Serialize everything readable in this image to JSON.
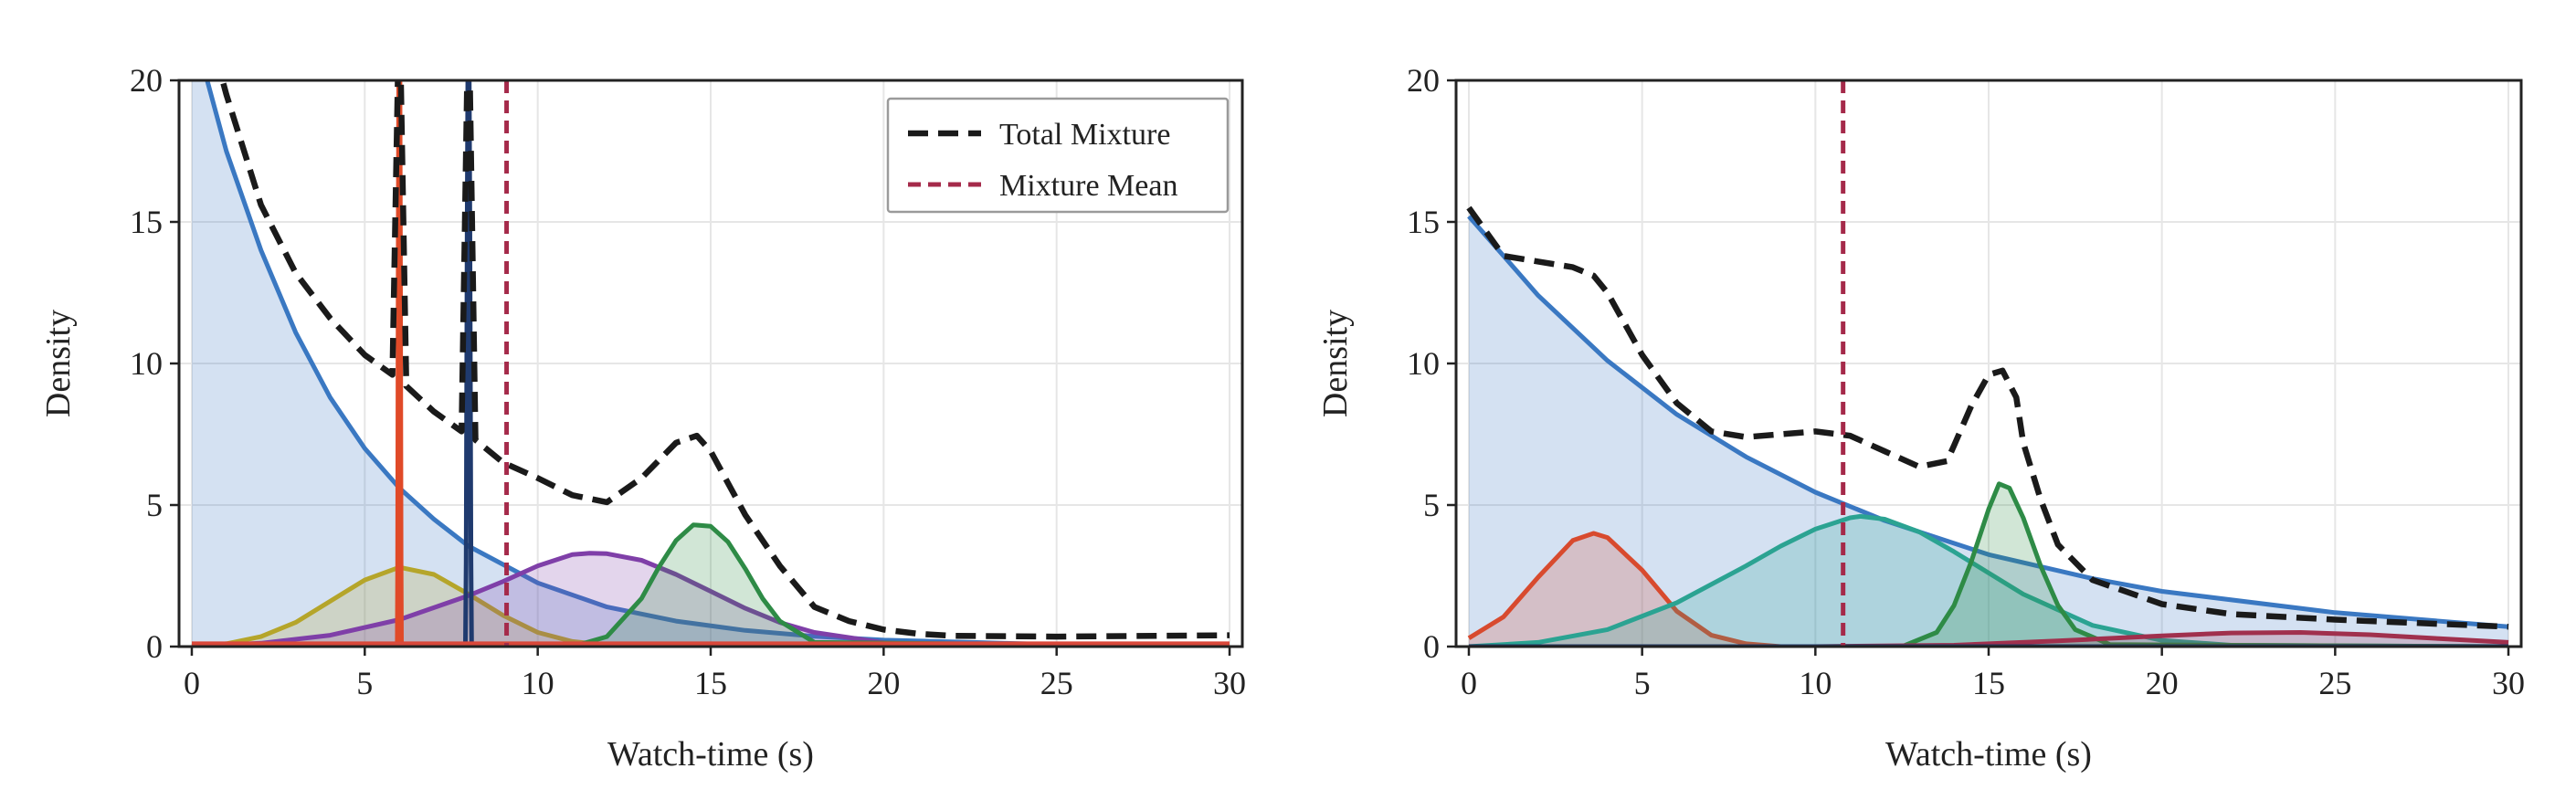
{
  "chart_data": [
    {
      "type": "line",
      "xlabel": "Watch-time (s)",
      "ylabel": "Density",
      "xlim": [
        0,
        30
      ],
      "ylim": [
        0,
        20
      ],
      "xticks": [
        0,
        5,
        10,
        15,
        20,
        25,
        30
      ],
      "yticks": [
        0,
        5,
        10,
        15,
        20
      ],
      "grid": true,
      "legend": {
        "placement": "top-right",
        "entries": [
          "Total Mixture",
          "Mixture Mean"
        ]
      },
      "colors": {
        "total": "#1a1a1a",
        "mean": "#a52a4a"
      },
      "series": [
        {
          "color": "#3a78c2",
          "fill": true,
          "x": [
            0,
            1,
            2,
            3,
            4,
            5,
            6,
            7,
            8,
            10,
            12,
            14,
            16,
            18,
            20,
            25,
            30
          ],
          "y": [
            22.0,
            17.5,
            14.0,
            11.1,
            8.8,
            7.0,
            5.6,
            4.5,
            3.55,
            2.25,
            1.4,
            0.9,
            0.57,
            0.36,
            0.23,
            0.07,
            0.02
          ]
        },
        {
          "color": "#b5a52a",
          "fill": true,
          "x": [
            0,
            1,
            2,
            3,
            4,
            5,
            6,
            7,
            8,
            9,
            10,
            11,
            12,
            14,
            30
          ],
          "y": [
            0.02,
            0.1,
            0.35,
            0.85,
            1.6,
            2.35,
            2.8,
            2.55,
            1.85,
            1.1,
            0.5,
            0.18,
            0.05,
            0.0,
            0.0
          ]
        },
        {
          "color": "#7f3fa8",
          "fill": true,
          "x": [
            0,
            2,
            4,
            6,
            8,
            9,
            10,
            11,
            11.5,
            12,
            13,
            14,
            15,
            16,
            17,
            18,
            20,
            22,
            30
          ],
          "y": [
            0.0,
            0.12,
            0.4,
            0.95,
            1.8,
            2.3,
            2.85,
            3.25,
            3.3,
            3.28,
            3.05,
            2.55,
            1.95,
            1.35,
            0.85,
            0.5,
            0.14,
            0.02,
            0.0
          ]
        },
        {
          "color": "#2e8b46",
          "fill": true,
          "x": [
            11,
            12,
            13,
            13.5,
            14,
            14.5,
            15,
            15.5,
            16,
            16.5,
            17,
            18,
            30
          ],
          "y": [
            0.0,
            0.35,
            1.7,
            2.8,
            3.75,
            4.3,
            4.25,
            3.7,
            2.75,
            1.7,
            0.9,
            0.15,
            0.0
          ]
        },
        {
          "color": "#e04a28",
          "fill": false,
          "x": [
            5.94,
            5.95,
            5.97,
            5.99,
            6.01,
            6.03,
            6.05,
            6.06
          ],
          "y": [
            0,
            3,
            15,
            23,
            23,
            15,
            3,
            0
          ]
        },
        {
          "color": "#1f3a6e",
          "fill": false,
          "x": [
            7.91,
            7.93,
            7.96,
            7.99,
            8.01,
            8.04,
            8.07,
            8.09
          ],
          "y": [
            0,
            3,
            15,
            23,
            23,
            15,
            3,
            0
          ]
        },
        {
          "color": "#d9483a",
          "fill": false,
          "x": [
            0,
            30
          ],
          "y": [
            0.1,
            0.1
          ]
        }
      ],
      "total": {
        "x": [
          0,
          1,
          2,
          3,
          4,
          5,
          5.8,
          6,
          6.2,
          7,
          7.8,
          8,
          8.2,
          9,
          10,
          11,
          12,
          13,
          14,
          14.6,
          15,
          16,
          17,
          18,
          19,
          20,
          21,
          22,
          25,
          30
        ],
        "y": [
          24.0,
          19.5,
          15.6,
          13.2,
          11.6,
          10.3,
          9.6,
          23.0,
          9.2,
          8.3,
          7.6,
          23.0,
          7.3,
          6.5,
          5.95,
          5.35,
          5.1,
          5.95,
          7.2,
          7.45,
          6.9,
          4.65,
          2.85,
          1.4,
          0.9,
          0.6,
          0.45,
          0.38,
          0.35,
          0.4
        ]
      },
      "mean": 9.1
    },
    {
      "type": "line",
      "xlabel": "Watch-time (s)",
      "ylabel": "Density",
      "xlim": [
        0,
        30
      ],
      "ylim": [
        0,
        20
      ],
      "xticks": [
        0,
        5,
        10,
        15,
        20,
        25,
        30
      ],
      "yticks": [
        0,
        5,
        10,
        15,
        20
      ],
      "grid": true,
      "colors": {
        "total": "#1a1a1a",
        "mean": "#a52a4a"
      },
      "series": [
        {
          "color": "#3a78c2",
          "fill": true,
          "x": [
            0,
            2,
            4,
            6,
            8,
            10,
            12,
            15,
            18,
            20,
            25,
            30
          ],
          "y": [
            15.2,
            12.4,
            10.1,
            8.2,
            6.7,
            5.45,
            4.45,
            3.25,
            2.4,
            1.95,
            1.2,
            0.7
          ]
        },
        {
          "color": "#d84a2e",
          "fill": true,
          "x": [
            0,
            1,
            2,
            3,
            3.6,
            4,
            5,
            6,
            7,
            8,
            9,
            30
          ],
          "y": [
            0.3,
            1.05,
            2.45,
            3.75,
            4.0,
            3.85,
            2.7,
            1.25,
            0.4,
            0.1,
            0.0,
            0.0
          ]
        },
        {
          "color": "#2ba392",
          "fill": true,
          "x": [
            0,
            2,
            4,
            6,
            8,
            9,
            10,
            11,
            11.3,
            12,
            13,
            14,
            15,
            16,
            18,
            20,
            22,
            30
          ],
          "y": [
            0.0,
            0.15,
            0.6,
            1.55,
            2.85,
            3.55,
            4.15,
            4.55,
            4.6,
            4.5,
            4.05,
            3.35,
            2.6,
            1.85,
            0.75,
            0.22,
            0.05,
            0.0
          ]
        },
        {
          "color": "#2e8b46",
          "fill": true,
          "x": [
            12.5,
            13.5,
            14,
            14.5,
            15,
            15.3,
            15.6,
            16,
            16.5,
            17,
            17.5,
            18.5,
            30
          ],
          "y": [
            0.0,
            0.5,
            1.45,
            3.0,
            4.85,
            5.75,
            5.6,
            4.55,
            2.85,
            1.45,
            0.6,
            0.07,
            0.0
          ]
        },
        {
          "color": "#a0304d",
          "fill": true,
          "x": [
            0,
            10,
            14,
            17,
            20,
            22,
            24,
            26,
            28,
            30
          ],
          "y": [
            0.0,
            0.0,
            0.05,
            0.2,
            0.38,
            0.48,
            0.5,
            0.42,
            0.28,
            0.15
          ]
        },
        {
          "color": "#243a66",
          "fill": true,
          "x": [
            0,
            30
          ],
          "y": [
            0.0,
            0.0
          ]
        }
      ],
      "total": {
        "x": [
          0,
          1,
          2,
          3,
          3.6,
          4,
          5,
          6,
          7,
          8,
          9,
          10,
          11,
          12,
          13,
          13.8,
          14,
          14.5,
          15,
          15.4,
          15.8,
          16,
          16.5,
          17,
          18,
          20,
          22,
          25,
          30
        ],
        "y": [
          15.5,
          13.8,
          13.6,
          13.4,
          13.1,
          12.5,
          10.3,
          8.6,
          7.6,
          7.4,
          7.5,
          7.6,
          7.45,
          6.9,
          6.35,
          6.55,
          7.1,
          8.5,
          9.6,
          9.75,
          8.8,
          7.2,
          5.2,
          3.6,
          2.35,
          1.5,
          1.15,
          0.95,
          0.7
        ]
      },
      "mean": 10.8
    }
  ]
}
